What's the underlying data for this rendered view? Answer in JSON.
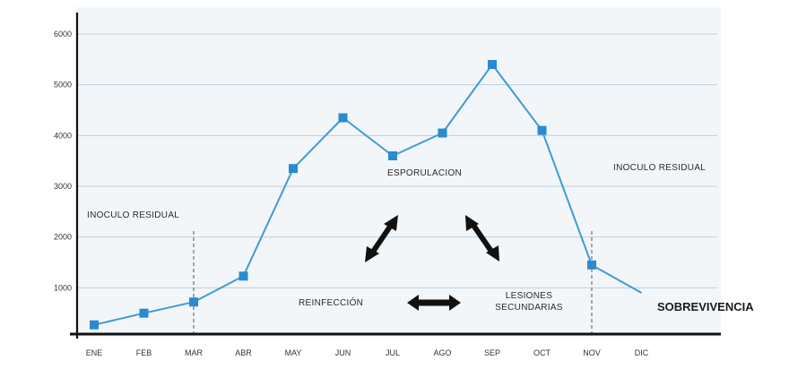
{
  "chart_data": {
    "type": "line",
    "categories": [
      "ENE",
      "FEB",
      "MAR",
      "ABR",
      "MAY",
      "JUN",
      "JUL",
      "AGO",
      "SEP",
      "OCT",
      "NOV",
      "DIC"
    ],
    "series": [
      {
        "values": [
          270,
          500,
          720,
          1230,
          3350,
          4350,
          3600,
          4050,
          5400,
          4100,
          1450,
          900
        ]
      }
    ],
    "ylim": [
      0,
      6500
    ],
    "yticks": [
      1000,
      2000,
      3000,
      4000,
      5000,
      6000
    ],
    "ytick_labels": [
      "1000",
      "2000",
      "3000",
      "4000",
      "5000",
      "6000"
    ],
    "grid": "horizontal",
    "colors": {
      "line": "#3f9ad8",
      "marker": "#2a8ad2",
      "grid": "#b8cfe0",
      "plot_bg": "#f3f6f8",
      "axis": "#111111"
    },
    "annotations": {
      "inoculo_residual_left": "INOCULO RESIDUAL",
      "esporulacion": "ESPORULACION",
      "inoculo_residual_right": "INOCULO RESIDUAL",
      "reinfeccion": "REINFECCIÓN",
      "lesiones_line1": "LESIONES",
      "lesiones_line2": "SECUNDARIAS",
      "sobrevivencia": "SOBREVIVENCIA"
    },
    "dashed_markers_at": [
      "MAR",
      "NOV"
    ]
  }
}
